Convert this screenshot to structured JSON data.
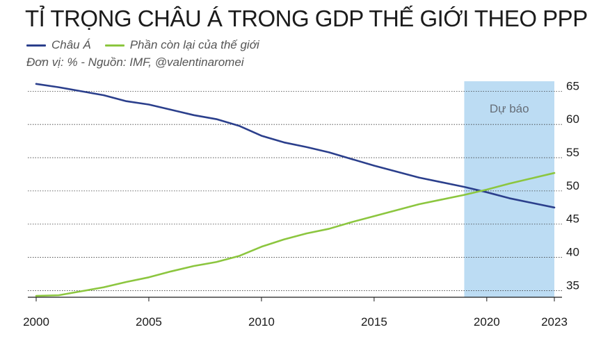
{
  "title": "TỈ TRỌNG CHÂU Á TRONG GDP THẾ GIỚI THEO PPP",
  "legend": {
    "items": [
      {
        "label": "Châu Á",
        "color": "#2b3f8c"
      },
      {
        "label": "Phần còn lại của thế giới",
        "color": "#8cc63f"
      }
    ]
  },
  "source_note": "Đơn vị: % - Nguồn: IMF, @valentinaromei",
  "chart_data": {
    "type": "line",
    "title": "TỈ TRỌNG CHÂU Á TRONG GDP THẾ GIỚI THEO PPP",
    "xlabel": "",
    "ylabel": "%",
    "xlim": [
      2000,
      2023
    ],
    "ylim": [
      34,
      66.5
    ],
    "x_ticks": [
      2000,
      2005,
      2010,
      2015,
      2020,
      2023
    ],
    "y_ticks": [
      35,
      40,
      45,
      50,
      55,
      60,
      65
    ],
    "grid": "horizontal",
    "y_axis_position": "right",
    "forecast_region": {
      "from": 2019,
      "to": 2023,
      "label": "Dự báo",
      "color": "#bcdcf3"
    },
    "x": [
      2000,
      2001,
      2002,
      2003,
      2004,
      2005,
      2006,
      2007,
      2008,
      2009,
      2010,
      2011,
      2012,
      2013,
      2014,
      2015,
      2016,
      2017,
      2018,
      2019,
      2020,
      2021,
      2022,
      2023
    ],
    "series": [
      {
        "name": "Châu Á",
        "color": "#2b3f8c",
        "values": [
          66.1,
          65.6,
          65.0,
          64.4,
          63.5,
          63.0,
          62.2,
          61.4,
          60.8,
          59.8,
          58.3,
          57.3,
          56.6,
          55.8,
          54.8,
          53.8,
          52.9,
          52.0,
          51.3,
          50.6,
          49.8,
          48.9,
          48.2,
          47.5
        ]
      },
      {
        "name": "Phần còn lại của thế giới",
        "color": "#8cc63f",
        "values": [
          34.2,
          34.3,
          34.9,
          35.5,
          36.3,
          37.0,
          37.9,
          38.7,
          39.3,
          40.2,
          41.6,
          42.7,
          43.6,
          44.3,
          45.3,
          46.2,
          47.1,
          48.0,
          48.7,
          49.4,
          50.2,
          51.1,
          51.9,
          52.7
        ]
      }
    ]
  }
}
